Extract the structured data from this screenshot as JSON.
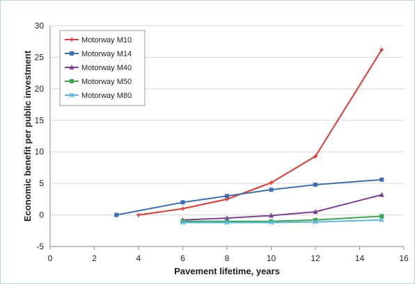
{
  "chart_data": {
    "type": "line",
    "xlabel": "Pavement lifetime, years",
    "ylabel": "Economic benefit per public investment",
    "xlim": [
      0,
      16
    ],
    "ylim": [
      -5,
      30
    ],
    "x_ticks": [
      0,
      2,
      4,
      6,
      8,
      10,
      12,
      14,
      16
    ],
    "y_ticks": [
      -5,
      0,
      5,
      10,
      15,
      20,
      25,
      30
    ],
    "grid": "horizontal",
    "legend_position": "top-left",
    "series": [
      {
        "name": "Motorway M10",
        "color": "#e8332e",
        "marker": "plus",
        "points": [
          [
            4,
            0
          ],
          [
            6,
            1.0
          ],
          [
            8,
            2.5
          ],
          [
            10,
            5.1
          ],
          [
            12,
            9.3
          ],
          [
            15,
            26.2
          ]
        ]
      },
      {
        "name": "Motorway M14",
        "color": "#3a6fb5",
        "marker": "square",
        "points": [
          [
            3,
            0
          ],
          [
            6,
            2.0
          ],
          [
            8,
            3.0
          ],
          [
            10,
            4.0
          ],
          [
            12,
            4.8
          ],
          [
            15,
            5.6
          ]
        ]
      },
      {
        "name": "Motorway M40",
        "color": "#7b3d96",
        "marker": "triangle",
        "points": [
          [
            6,
            -0.8
          ],
          [
            8,
            -0.5
          ],
          [
            10,
            -0.1
          ],
          [
            12,
            0.5
          ],
          [
            15,
            3.2
          ]
        ]
      },
      {
        "name": "Motorway M50",
        "color": "#3aa84a",
        "marker": "square",
        "points": [
          [
            6,
            -1.0
          ],
          [
            8,
            -1.0
          ],
          [
            10,
            -1.0
          ],
          [
            12,
            -0.8
          ],
          [
            15,
            -0.2
          ]
        ]
      },
      {
        "name": "Motorway M80",
        "color": "#5ab6e3",
        "marker": "x",
        "points": [
          [
            6,
            -1.2
          ],
          [
            8,
            -1.2
          ],
          [
            10,
            -1.2
          ],
          [
            12,
            -1.1
          ],
          [
            15,
            -0.8
          ]
        ]
      }
    ]
  }
}
